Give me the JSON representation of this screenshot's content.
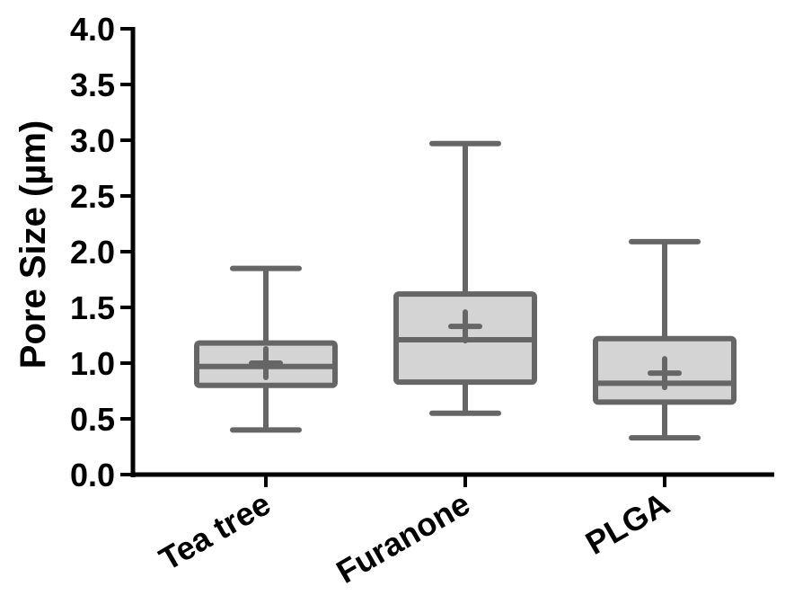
{
  "chart_data": {
    "type": "box",
    "title": "",
    "xlabel": "",
    "ylabel": "Pore Size (µm)",
    "ylim": [
      0,
      4.0
    ],
    "yticks": [
      "0.0",
      "0.5",
      "1.0",
      "1.5",
      "2.0",
      "2.5",
      "3.0",
      "3.5",
      "4.0"
    ],
    "categories": [
      "Tea tree",
      "Furanone",
      "PLGA"
    ],
    "boxes": [
      {
        "category": "Tea tree",
        "min": 0.4,
        "q1": 0.8,
        "median": 0.97,
        "q3": 1.18,
        "max": 1.85,
        "mean": 1.0
      },
      {
        "category": "Furanone",
        "min": 0.55,
        "q1": 0.83,
        "median": 1.21,
        "q3": 1.62,
        "max": 2.97,
        "mean": 1.33
      },
      {
        "category": "PLGA",
        "min": 0.33,
        "q1": 0.65,
        "median": 0.82,
        "q3": 1.22,
        "max": 2.09,
        "mean": 0.91
      }
    ],
    "grid": false,
    "legend": "none",
    "colors": {
      "stroke": "#666666",
      "fill": "#d4d4d4",
      "axis": "#000000"
    }
  }
}
